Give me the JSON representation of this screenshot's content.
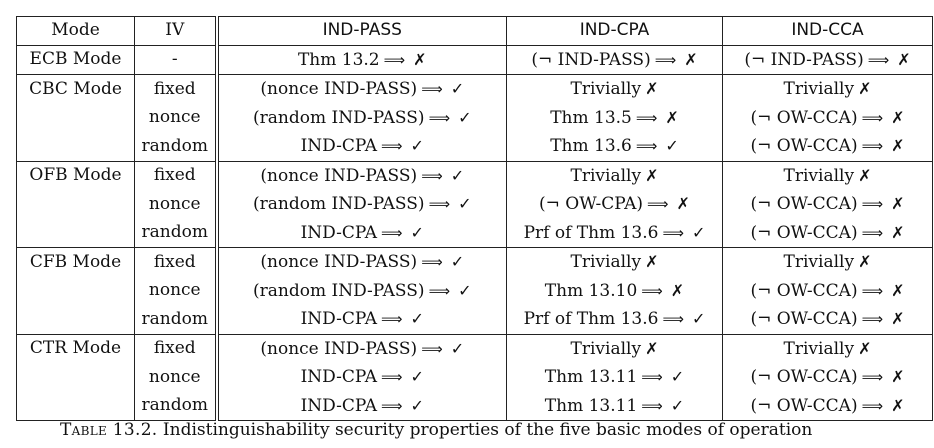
{
  "table": {
    "headers": [
      "Mode",
      "IV",
      "IND-PASS",
      "IND-CPA",
      "IND-CCA"
    ],
    "symbols": {
      "implies": "⟹",
      "cross": "✗",
      "check": "✓"
    },
    "groups": [
      {
        "mode": "ECB Mode",
        "rows": [
          {
            "iv": "-",
            "pass": {
              "text": "Thm 13.2",
              "arrow": true,
              "mark": "cross"
            },
            "cpa": {
              "text": "(¬ IND-PASS)",
              "arrow": true,
              "mark": "cross"
            },
            "cca": {
              "text": "(¬ IND-PASS)",
              "arrow": true,
              "mark": "cross"
            }
          }
        ]
      },
      {
        "mode": "CBC Mode",
        "rows": [
          {
            "iv": "fixed",
            "pass": {
              "text": "(nonce IND-PASS)",
              "arrow": true,
              "mark": "check"
            },
            "cpa": {
              "text": "Trivially",
              "arrow": false,
              "mark": "cross"
            },
            "cca": {
              "text": "Trivially",
              "arrow": false,
              "mark": "cross"
            }
          },
          {
            "iv": "nonce",
            "pass": {
              "text": "(random IND-PASS)",
              "arrow": true,
              "mark": "check"
            },
            "cpa": {
              "text": "Thm 13.5",
              "arrow": true,
              "mark": "cross"
            },
            "cca": {
              "text": "(¬ OW-CCA)",
              "arrow": true,
              "mark": "cross"
            }
          },
          {
            "iv": "random",
            "pass": {
              "text": "IND-CPA",
              "arrow": true,
              "mark": "check"
            },
            "cpa": {
              "text": "Thm 13.6",
              "arrow": true,
              "mark": "check"
            },
            "cca": {
              "text": "(¬ OW-CCA)",
              "arrow": true,
              "mark": "cross"
            }
          }
        ]
      },
      {
        "mode": "OFB Mode",
        "rows": [
          {
            "iv": "fixed",
            "pass": {
              "text": "(nonce IND-PASS)",
              "arrow": true,
              "mark": "check"
            },
            "cpa": {
              "text": "Trivially",
              "arrow": false,
              "mark": "cross"
            },
            "cca": {
              "text": "Trivially",
              "arrow": false,
              "mark": "cross"
            }
          },
          {
            "iv": "nonce",
            "pass": {
              "text": "(random IND-PASS)",
              "arrow": true,
              "mark": "check"
            },
            "cpa": {
              "text": "(¬ OW-CPA)",
              "arrow": true,
              "mark": "cross"
            },
            "cca": {
              "text": "(¬ OW-CCA)",
              "arrow": true,
              "mark": "cross"
            }
          },
          {
            "iv": "random",
            "pass": {
              "text": "IND-CPA",
              "arrow": true,
              "mark": "check"
            },
            "cpa": {
              "text": "Prf of Thm 13.6",
              "arrow": true,
              "mark": "check"
            },
            "cca": {
              "text": "(¬ OW-CCA)",
              "arrow": true,
              "mark": "cross"
            }
          }
        ]
      },
      {
        "mode": "CFB Mode",
        "rows": [
          {
            "iv": "fixed",
            "pass": {
              "text": "(nonce IND-PASS)",
              "arrow": true,
              "mark": "check"
            },
            "cpa": {
              "text": "Trivially",
              "arrow": false,
              "mark": "cross"
            },
            "cca": {
              "text": "Trivially",
              "arrow": false,
              "mark": "cross"
            }
          },
          {
            "iv": "nonce",
            "pass": {
              "text": "(random IND-PASS)",
              "arrow": true,
              "mark": "check"
            },
            "cpa": {
              "text": "Thm 13.10",
              "arrow": true,
              "mark": "cross"
            },
            "cca": {
              "text": "(¬ OW-CCA)",
              "arrow": true,
              "mark": "cross"
            }
          },
          {
            "iv": "random",
            "pass": {
              "text": "IND-CPA",
              "arrow": true,
              "mark": "check"
            },
            "cpa": {
              "text": "Prf of Thm 13.6",
              "arrow": true,
              "mark": "check"
            },
            "cca": {
              "text": "(¬ OW-CCA)",
              "arrow": true,
              "mark": "cross"
            }
          }
        ]
      },
      {
        "mode": "CTR Mode",
        "rows": [
          {
            "iv": "fixed",
            "pass": {
              "text": "(nonce IND-PASS)",
              "arrow": true,
              "mark": "check"
            },
            "cpa": {
              "text": "Trivially",
              "arrow": false,
              "mark": "cross"
            },
            "cca": {
              "text": "Trivially",
              "arrow": false,
              "mark": "cross"
            }
          },
          {
            "iv": "nonce",
            "pass": {
              "text": "IND-CPA",
              "arrow": true,
              "mark": "check"
            },
            "cpa": {
              "text": "Thm 13.11",
              "arrow": true,
              "mark": "check"
            },
            "cca": {
              "text": "(¬ OW-CCA)",
              "arrow": true,
              "mark": "cross"
            }
          },
          {
            "iv": "random",
            "pass": {
              "text": "IND-CPA",
              "arrow": true,
              "mark": "check"
            },
            "cpa": {
              "text": "Thm 13.11",
              "arrow": true,
              "mark": "check"
            },
            "cca": {
              "text": "(¬ OW-CCA)",
              "arrow": true,
              "mark": "cross"
            }
          }
        ]
      }
    ]
  },
  "caption": {
    "label": "Table 13.2.",
    "text": "Indistinguishability security properties of the five basic modes of operation"
  }
}
